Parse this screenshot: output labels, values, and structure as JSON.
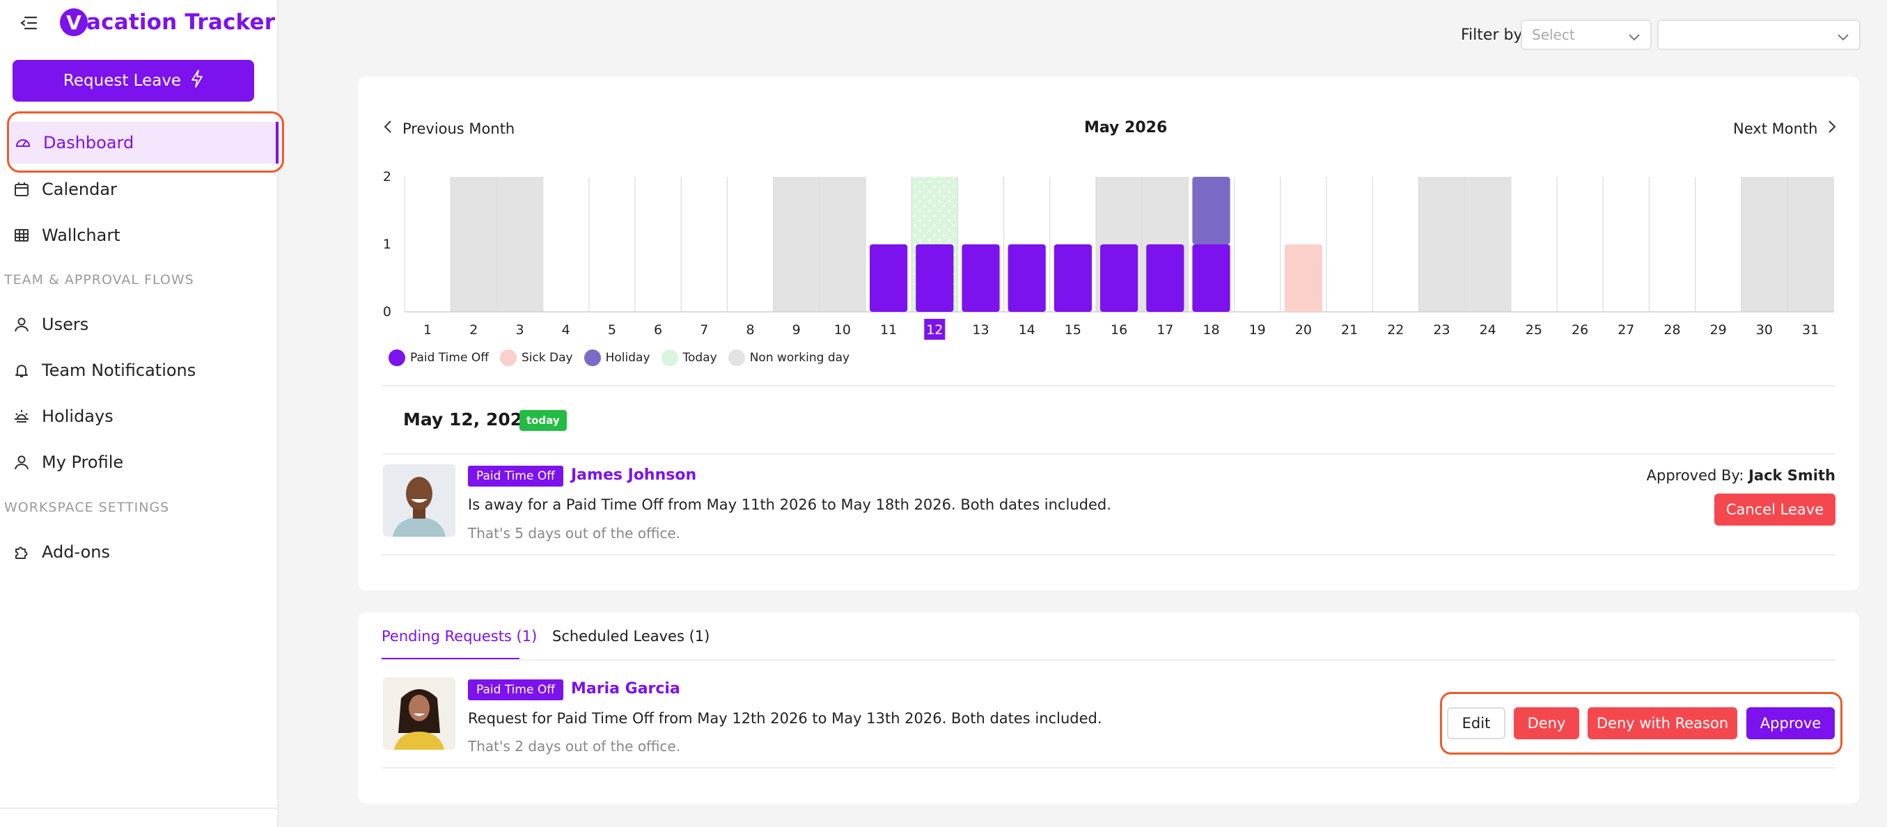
{
  "app": {
    "logo_letter": "V",
    "name": "acation Tracker"
  },
  "sidebar": {
    "request_leave": "Request Leave",
    "items": [
      {
        "label": "Dashboard",
        "icon": "gauge-icon"
      },
      {
        "label": "Calendar",
        "icon": "calendar-icon"
      },
      {
        "label": "Wallchart",
        "icon": "grid-icon"
      }
    ],
    "section_team": "TEAM & APPROVAL FLOWS",
    "team_items": [
      {
        "label": "Users",
        "icon": "user-icon"
      },
      {
        "label": "Team Notifications",
        "icon": "bell-icon"
      },
      {
        "label": "Holidays",
        "icon": "sunset-icon"
      },
      {
        "label": "My Profile",
        "icon": "user-icon"
      }
    ],
    "section_workspace": "WORKSPACE SETTINGS",
    "workspace_items": [
      {
        "label": "Add-ons",
        "icon": "puzzle-icon"
      }
    ]
  },
  "filter": {
    "label": "Filter by",
    "select1_placeholder": "Select",
    "select2_value": ""
  },
  "calendar": {
    "prev_label": "Previous Month",
    "next_label": "Next Month",
    "month_title": "May 2026"
  },
  "chart_data": {
    "type": "bar",
    "categories": [
      "1",
      "2",
      "3",
      "4",
      "5",
      "6",
      "7",
      "8",
      "9",
      "10",
      "11",
      "12",
      "13",
      "14",
      "15",
      "16",
      "17",
      "18",
      "19",
      "20",
      "21",
      "22",
      "23",
      "24",
      "25",
      "26",
      "27",
      "28",
      "29",
      "30",
      "31"
    ],
    "series": [
      {
        "name": "Paid Time Off",
        "color": "#7c12ee",
        "values": [
          0,
          0,
          0,
          0,
          0,
          0,
          0,
          0,
          0,
          0,
          1,
          1,
          1,
          1,
          1,
          1,
          1,
          1,
          0,
          0,
          0,
          0,
          0,
          0,
          0,
          0,
          0,
          0,
          0,
          0,
          0
        ]
      },
      {
        "name": "Sick Day",
        "color": "#fbd0cb",
        "values": [
          0,
          0,
          0,
          0,
          0,
          0,
          0,
          0,
          0,
          0,
          0,
          0,
          0,
          0,
          0,
          0,
          0,
          0,
          0,
          1,
          0,
          0,
          0,
          0,
          0,
          0,
          0,
          0,
          0,
          0,
          0
        ]
      },
      {
        "name": "Holiday",
        "color": "#7b6bc6",
        "values": [
          0,
          0,
          0,
          0,
          0,
          0,
          0,
          0,
          0,
          0,
          0,
          0,
          0,
          0,
          0,
          0,
          0,
          1,
          0,
          0,
          0,
          0,
          0,
          0,
          0,
          0,
          0,
          0,
          0,
          0,
          0
        ]
      }
    ],
    "today": "12",
    "non_working_days": [
      "2",
      "3",
      "9",
      "10",
      "16",
      "17",
      "23",
      "24",
      "30",
      "31"
    ],
    "ylim": [
      0,
      2
    ],
    "yticks": [
      "0",
      "1",
      "2"
    ],
    "legend": [
      {
        "label": "Paid Time Off",
        "color": "#7c12ee"
      },
      {
        "label": "Sick Day",
        "color": "#fbd0cb"
      },
      {
        "label": "Holiday",
        "color": "#7b6bc6"
      },
      {
        "label": "Today",
        "color": "#d9f5dc"
      },
      {
        "label": "Non working day",
        "color": "#e3e3e3"
      }
    ]
  },
  "today_section": {
    "date": "May 12, 2026",
    "badge": "today",
    "entry": {
      "badge": "Paid Time Off",
      "name": "James Johnson",
      "description": "Is away for a Paid Time Off from May 11th 2026 to May 18th 2026. Both dates included.",
      "subtext": "That's 5 days out of the office.",
      "approved_label": "Approved By:",
      "approved_by": "Jack Smith",
      "cancel_label": "Cancel Leave"
    }
  },
  "pending": {
    "tabs": [
      "Pending Requests (1)",
      "Scheduled Leaves (1)"
    ],
    "request": {
      "badge": "Paid Time Off",
      "name": "Maria Garcia",
      "description": "Request for Paid Time Off from May 12th 2026 to May 13th 2026. Both dates included.",
      "subtext": "That's 2 days out of the office.",
      "edit_label": "Edit",
      "deny_label": "Deny",
      "deny_reason_label": "Deny with Reason",
      "approve_label": "Approve"
    }
  }
}
